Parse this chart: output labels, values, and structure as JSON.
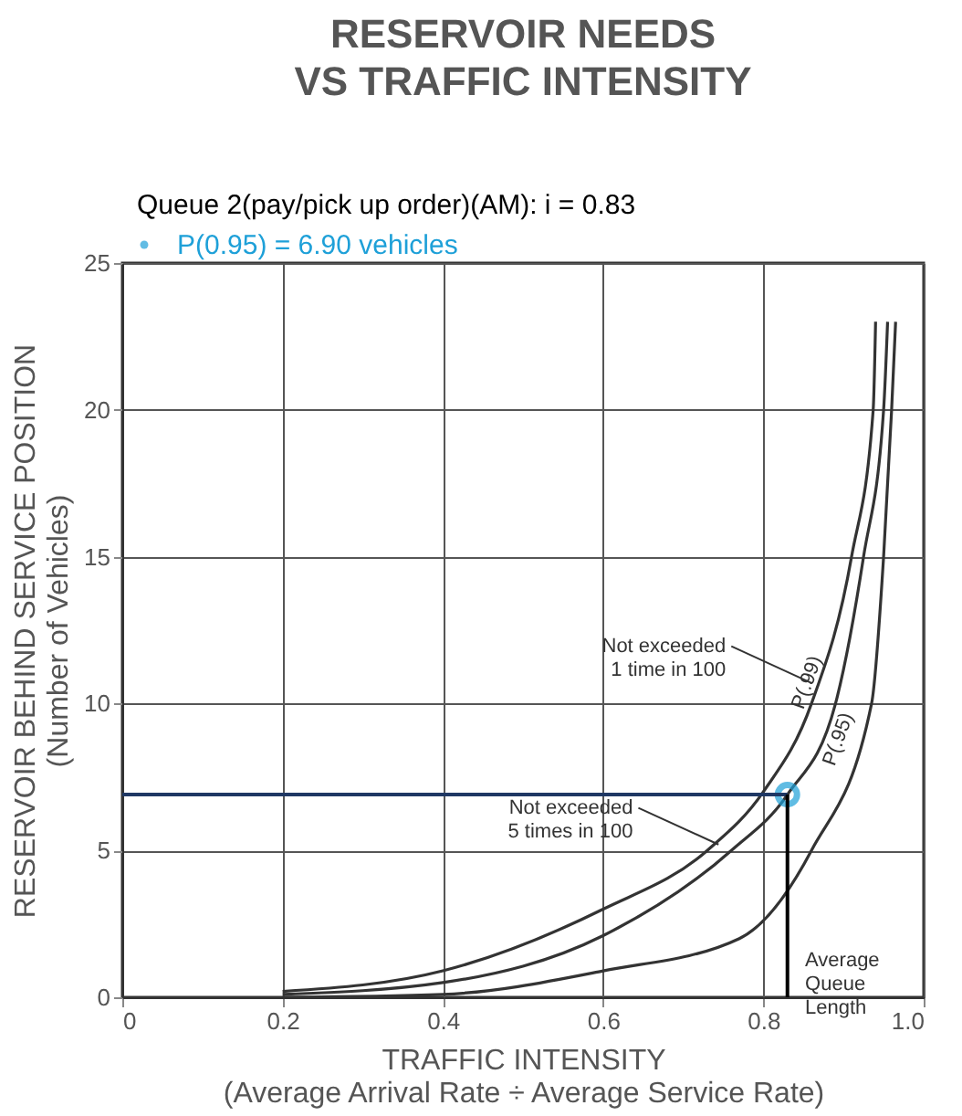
{
  "chart_data": {
    "type": "line",
    "title": "RESERVOIR NEEDS\nVS TRAFFIC INTENSITY",
    "subtitle": "Queue 2(pay/pick up order)(AM): i = 0.83",
    "xlabel": "TRAFFIC INTENSITY\n(Average Arrival Rate ÷ Average Service Rate)",
    "ylabel": "RESERVOIR BEHIND SERVICE POSITION\n(Number of Vehicles)",
    "xlim": [
      0,
      1
    ],
    "ylim": [
      0,
      25
    ],
    "xticks": [
      0,
      0.2,
      0.4,
      0.6,
      0.8,
      {
        "value": 1,
        "label": "1.0"
      }
    ],
    "yticks": [
      0,
      5,
      10,
      15,
      20,
      25
    ],
    "grid": true,
    "legend": "top left",
    "line_style": "solid",
    "series": [
      {
        "name": "P(.99)",
        "color": "#333333",
        "x": [
          0.2,
          0.4,
          0.6,
          0.73,
          0.8,
          0.86,
          0.91,
          0.937,
          0.94
        ],
        "values": [
          0.2,
          0.9,
          3.0,
          5,
          7,
          10,
          15,
          20,
          23
        ]
      },
      {
        "name": "P(.95)",
        "color": "#333333",
        "x": [
          0.2,
          0.4,
          0.6,
          0.76,
          0.83,
          0.89,
          0.925,
          0.95,
          0.955
        ],
        "values": [
          0.1,
          0.5,
          2.1,
          5,
          6.9,
          10,
          15,
          20,
          23
        ]
      },
      {
        "name": "Average Queue Length",
        "color": "#333333",
        "x": [
          0.2,
          0.4,
          0.6,
          0.77,
          0.86,
          0.935,
          0.95,
          0.96,
          0.965
        ],
        "values": [
          0,
          0.1,
          0.9,
          2,
          5,
          10,
          15,
          20,
          23
        ]
      },
      {
        "name": "P(0.95) = 6.90 vehicles",
        "type": "scatter",
        "marker": "circle",
        "color": "#1ea0d8",
        "x": [
          0.83
        ],
        "values": [
          6.9
        ]
      }
    ],
    "ref_lines": [
      {
        "axis": "y",
        "value": 6.9,
        "color": "#1f3864",
        "line_style": "solid"
      },
      {
        "axis": "x",
        "value": 0.83,
        "color": "#000000",
        "line_style": "solid"
      }
    ],
    "annotations": [
      {
        "text": "Not exceeded\n1 time in 100",
        "x": 0.86,
        "y": 10.7
      },
      {
        "text": "Not exceeded\n5 times in 100",
        "x": 0.744,
        "y": 5.2
      }
    ]
  }
}
